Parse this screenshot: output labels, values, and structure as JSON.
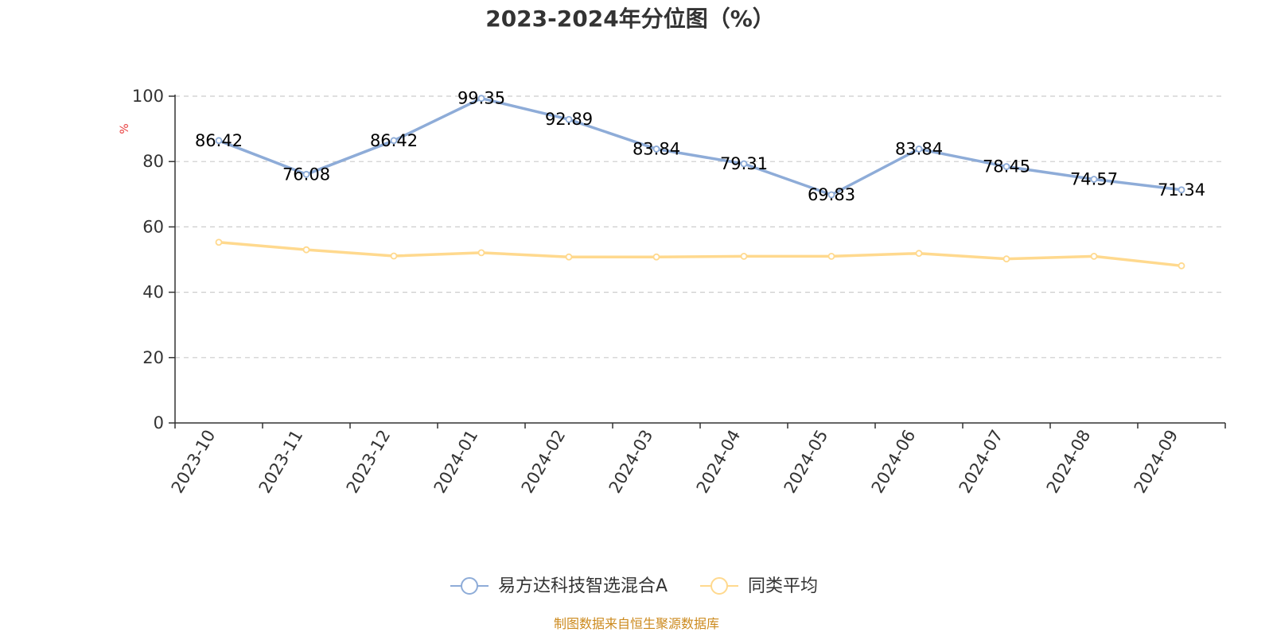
{
  "chart_data": {
    "type": "line",
    "title": "2023-2024年分位图（%）",
    "ylabel": "%",
    "xlabel": "",
    "x": [
      "2023-10",
      "2023-11",
      "2023-12",
      "2024-01",
      "2024-02",
      "2024-03",
      "2024-04",
      "2024-05",
      "2024-06",
      "2024-07",
      "2024-08",
      "2024-09"
    ],
    "ylim": [
      0,
      100
    ],
    "yticks": [
      0,
      20,
      40,
      60,
      80,
      100
    ],
    "grid": true,
    "legend_position": "bottom-center",
    "series": [
      {
        "name": "易方达科技智选混合A",
        "color": "#8EACD8",
        "values": [
          86.42,
          76.08,
          86.42,
          99.35,
          92.89,
          83.84,
          79.31,
          69.83,
          83.84,
          78.45,
          74.57,
          71.34
        ],
        "show_labels": true
      },
      {
        "name": "同类平均",
        "color": "#FFD98E",
        "values": [
          55.3,
          53.0,
          51.1,
          52.1,
          50.8,
          50.8,
          51.0,
          51.0,
          51.9,
          50.2,
          51.0,
          48.1
        ],
        "show_labels": false
      }
    ]
  },
  "colors": {
    "axis": "#333333",
    "grid": "#cccccc",
    "unit_label": "#e83a3a",
    "source": "#cc8a1e"
  },
  "source_text": "制图数据来自恒生聚源数据库"
}
